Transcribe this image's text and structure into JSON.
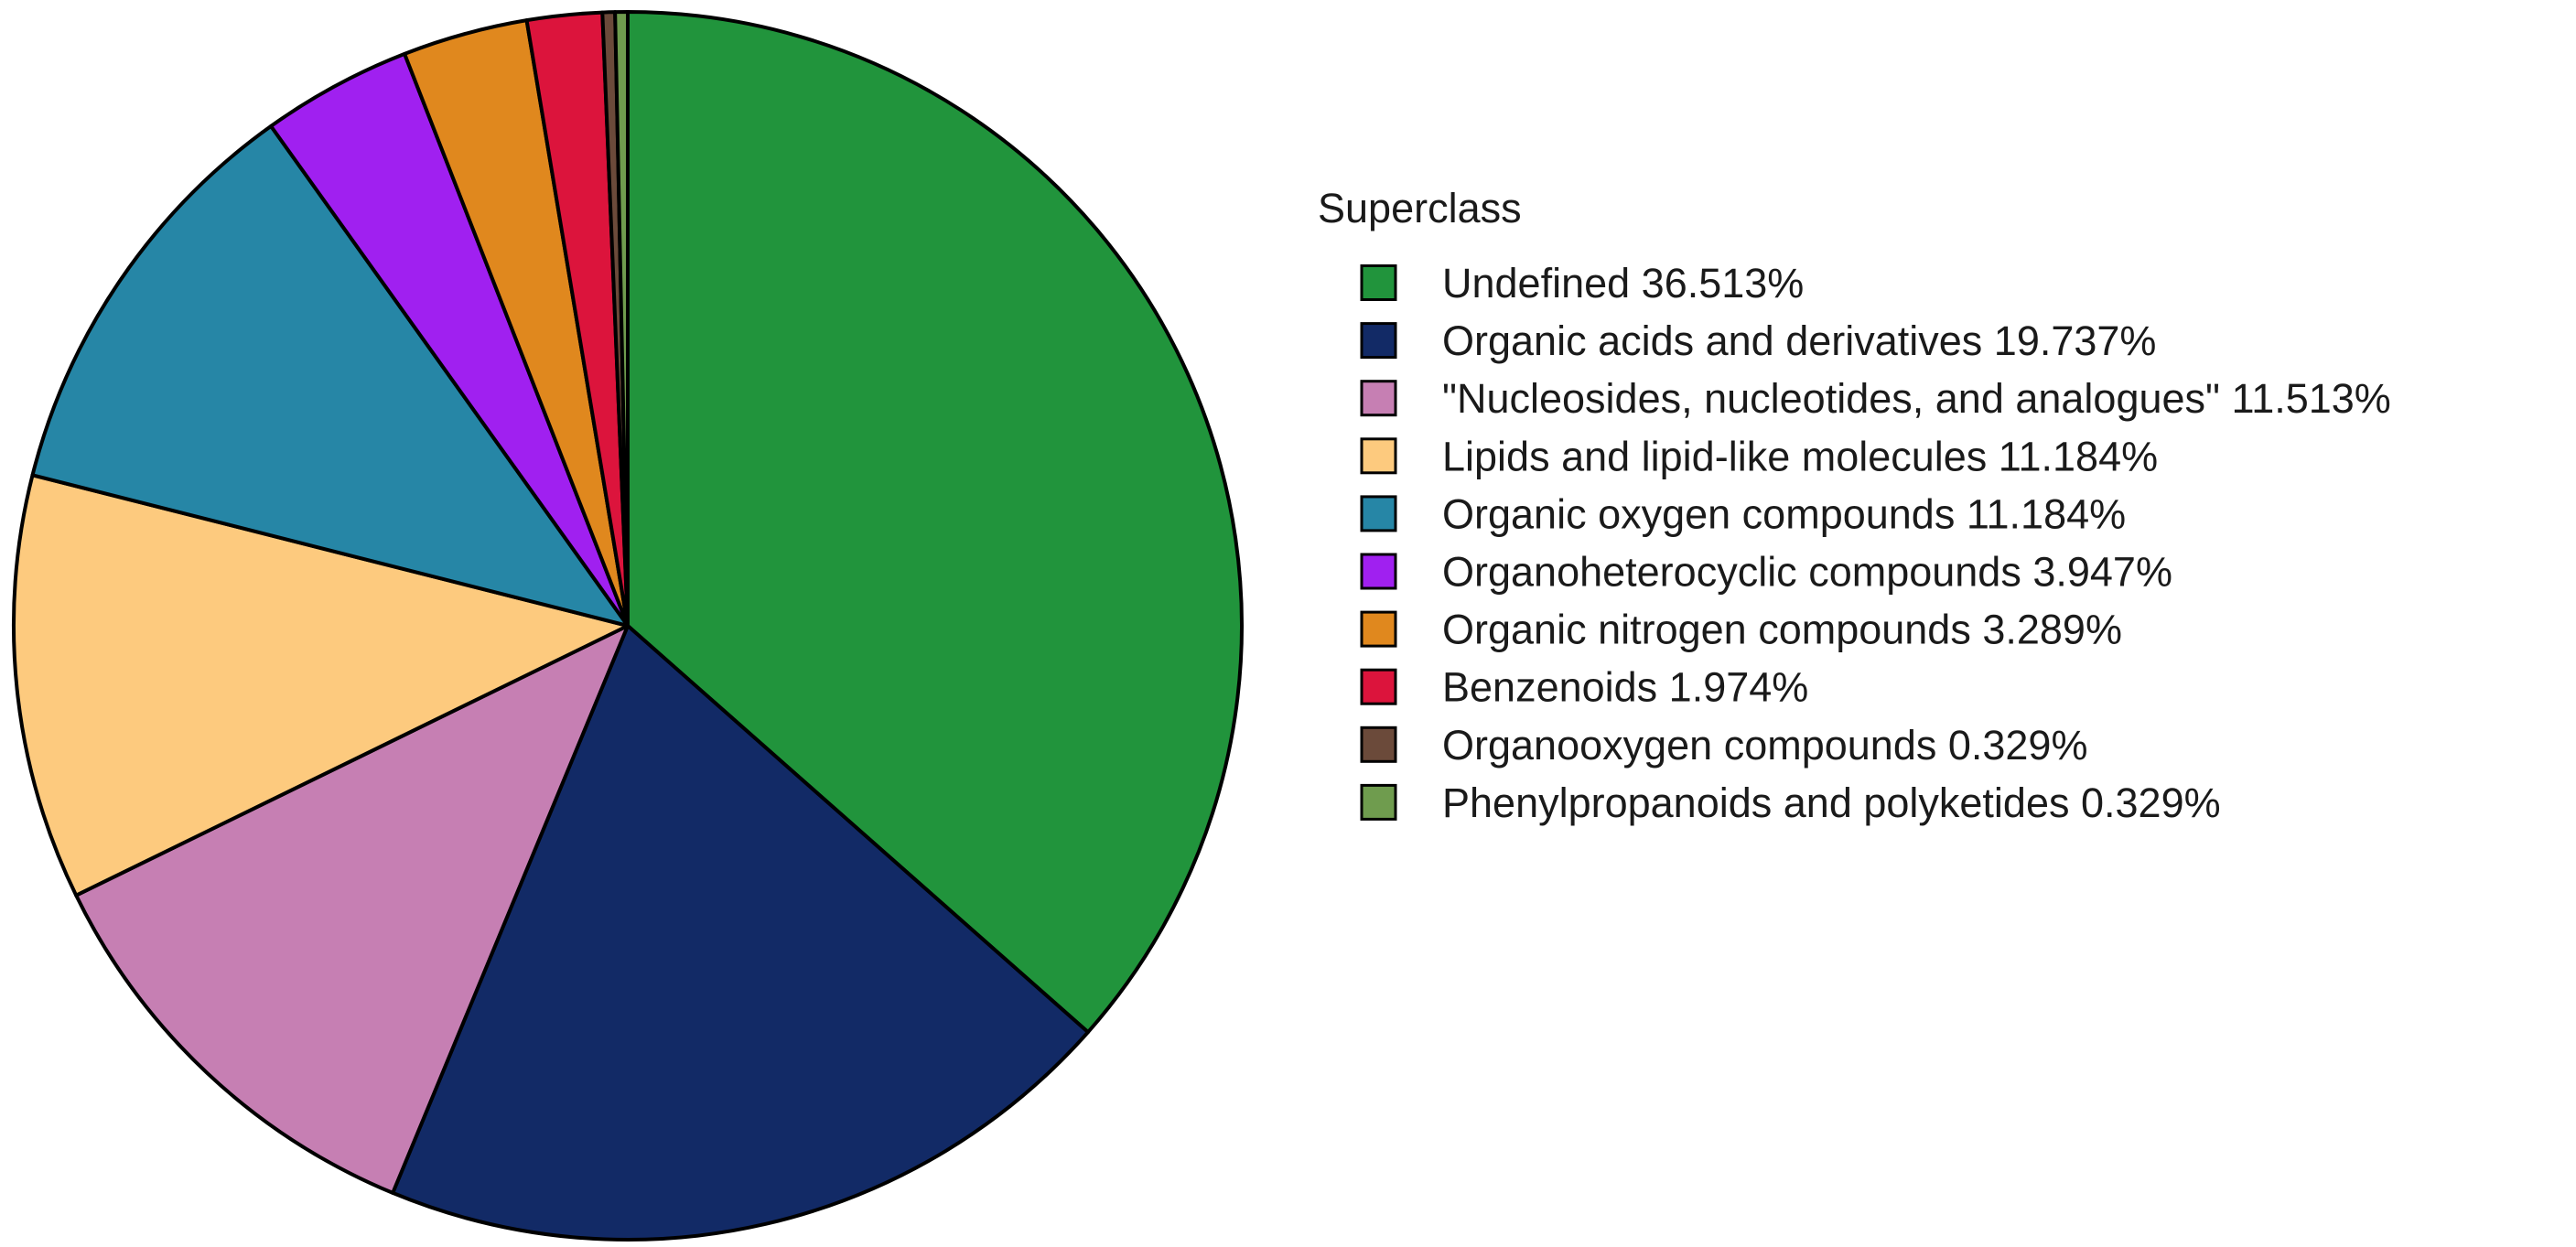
{
  "chart_data": {
    "type": "pie",
    "legend_title": "Superclass",
    "legend_position": "right",
    "start_angle_deg": 0,
    "direction": "clockwise",
    "slices": [
      {
        "label": "Undefined 36.513%",
        "category": "Undefined",
        "value": 36.513,
        "color": "#21943c"
      },
      {
        "label": "Organic acids and derivatives 19.737%",
        "category": "Organic acids and derivatives",
        "value": 19.737,
        "color": "#122a66"
      },
      {
        "label": "\"Nucleosides, nucleotides, and analogues\" 11.513%",
        "category": "\"Nucleosides, nucleotides, and analogues\"",
        "value": 11.513,
        "color": "#c67fb3"
      },
      {
        "label": "Lipids and lipid-like molecules 11.184%",
        "category": "Lipids and lipid-like molecules",
        "value": 11.184,
        "color": "#fdca7e"
      },
      {
        "label": "Organic oxygen compounds 11.184%",
        "category": "Organic oxygen compounds",
        "value": 11.184,
        "color": "#2686a6"
      },
      {
        "label": "Organoheterocyclic compounds 3.947%",
        "category": "Organoheterocyclic compounds",
        "value": 3.947,
        "color": "#a020f0"
      },
      {
        "label": "Organic nitrogen compounds 3.289%",
        "category": "Organic nitrogen compounds",
        "value": 3.289,
        "color": "#e0881e"
      },
      {
        "label": "Benzenoids 1.974%",
        "category": "Benzenoids",
        "value": 1.974,
        "color": "#dc143c"
      },
      {
        "label": "Organooxygen compounds 0.329%",
        "category": "Organooxygen compounds",
        "value": 0.329,
        "color": "#6b4a3a"
      },
      {
        "label": "Phenylpropanoids and polyketides 0.329%",
        "category": "Phenylpropanoids and polyketides",
        "value": 0.329,
        "color": "#6f9c4e"
      }
    ]
  }
}
